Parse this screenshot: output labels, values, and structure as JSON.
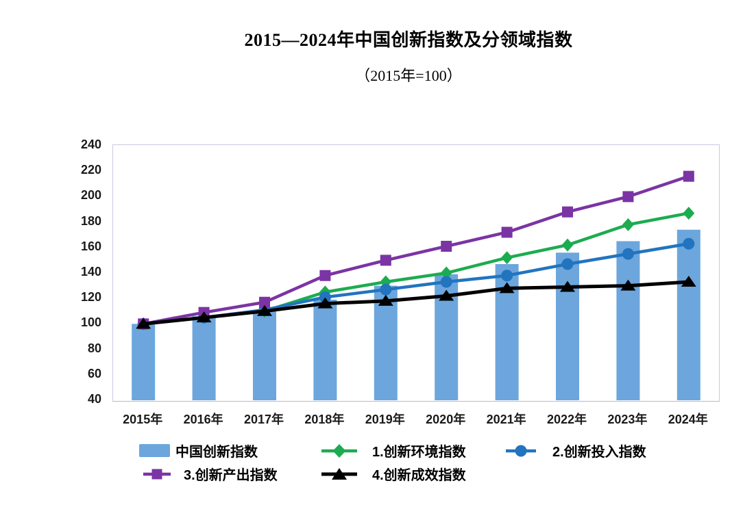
{
  "title": "2015—2024年中国创新指数及分领域指数",
  "subtitle": "（2015年=100）",
  "chart_data": {
    "type": "bar+line combo",
    "title": "2015—2024年中国创新指数及分领域指数",
    "subtitle": "（2015年=100）",
    "categories": [
      "2015年",
      "2016年",
      "2017年",
      "2018年",
      "2019年",
      "2020年",
      "2021年",
      "2022年",
      "2023年",
      "2024年"
    ],
    "series": [
      {
        "name": "中国创新指数",
        "type": "bar",
        "marker": "bar-swatch",
        "color": "#6ca6dc",
        "values": [
          100,
          106,
          110,
          119,
          130,
          139,
          147,
          156,
          165,
          174
        ]
      },
      {
        "name": "1.创新环境指数",
        "type": "line",
        "marker": "diamond",
        "color": "#1cac50",
        "values": [
          100,
          105,
          110,
          125,
          133,
          140,
          152,
          162,
          178,
          187
        ]
      },
      {
        "name": "2.创新投入指数",
        "type": "line",
        "marker": "circle",
        "color": "#2274bf",
        "values": [
          100,
          105,
          111,
          121,
          127,
          133,
          138,
          147,
          155,
          163
        ]
      },
      {
        "name": "3.创新产出指数",
        "type": "line",
        "marker": "square",
        "color": "#7b34a4",
        "values": [
          100,
          109,
          117,
          138,
          150,
          161,
          172,
          188,
          200,
          216
        ]
      },
      {
        "name": "4.创新成效指数",
        "type": "line",
        "marker": "triangle",
        "color": "#000000",
        "values": [
          100,
          105,
          110,
          116,
          118,
          122,
          128,
          129,
          130,
          133
        ]
      }
    ],
    "ylim": [
      40,
      240
    ],
    "y_ticks": [
      40,
      60,
      80,
      100,
      120,
      140,
      160,
      180,
      200,
      220,
      240
    ],
    "grid": false,
    "legend_position": "bottom"
  }
}
